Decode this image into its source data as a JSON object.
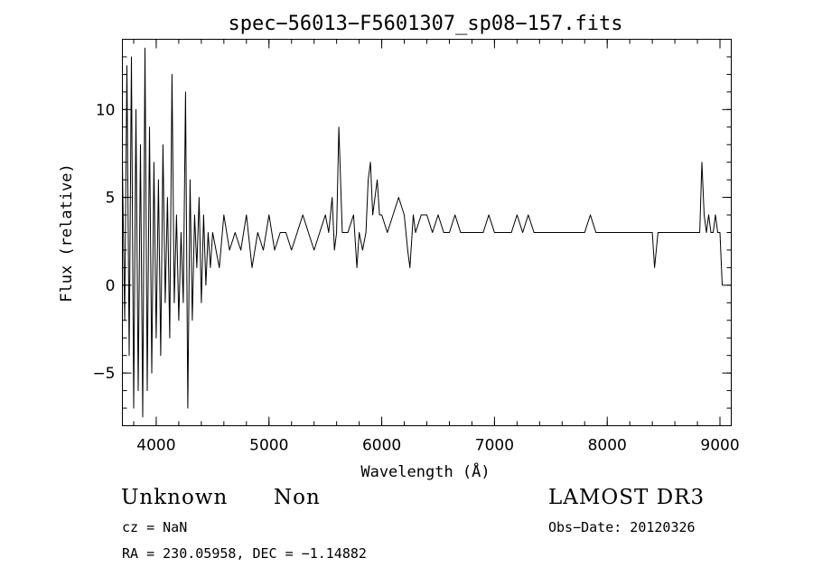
{
  "chart_data": {
    "type": "line",
    "title": "spec−56013−F5601307_sp08−157.fits",
    "xlabel": "Wavelength (Å)",
    "ylabel": "Flux (relative)",
    "xlim": [
      3700,
      9100
    ],
    "ylim": [
      -8,
      14
    ],
    "x_ticks": [
      4000,
      5000,
      6000,
      7000,
      8000,
      9000
    ],
    "y_ticks": [
      -5,
      0,
      5,
      10
    ],
    "y_tick_labels": [
      "−5",
      "0",
      "5",
      "10"
    ],
    "x_minor_step": 200,
    "y_minor_step": 1,
    "grid": false,
    "series": [
      {
        "color": "#000000",
        "x": [
          3700,
          3720,
          3740,
          3760,
          3780,
          3800,
          3820,
          3840,
          3860,
          3880,
          3900,
          3920,
          3940,
          3960,
          3980,
          4000,
          4020,
          4040,
          4060,
          4080,
          4100,
          4120,
          4140,
          4160,
          4180,
          4200,
          4220,
          4240,
          4260,
          4280,
          4300,
          4320,
          4340,
          4360,
          4380,
          4400,
          4420,
          4440,
          4460,
          4480,
          4500,
          4530,
          4560,
          4600,
          4650,
          4700,
          4750,
          4800,
          4850,
          4900,
          4950,
          5000,
          5050,
          5100,
          5150,
          5200,
          5250,
          5300,
          5350,
          5400,
          5450,
          5500,
          5530,
          5560,
          5580,
          5600,
          5620,
          5650,
          5700,
          5750,
          5780,
          5800,
          5830,
          5860,
          5880,
          5900,
          5920,
          5940,
          5960,
          5980,
          6000,
          6050,
          6100,
          6150,
          6200,
          6230,
          6250,
          6280,
          6300,
          6350,
          6400,
          6450,
          6500,
          6550,
          6600,
          6650,
          6700,
          6750,
          6800,
          6850,
          6900,
          6950,
          7000,
          7050,
          7100,
          7150,
          7200,
          7250,
          7300,
          7350,
          7400,
          7450,
          7500,
          7550,
          7600,
          7650,
          7700,
          7750,
          7800,
          7850,
          7900,
          7950,
          8000,
          8050,
          8100,
          8150,
          8200,
          8250,
          8300,
          8350,
          8400,
          8420,
          8450,
          8500,
          8550,
          8600,
          8650,
          8700,
          8750,
          8800,
          8820,
          8840,
          8860,
          8880,
          8900,
          8920,
          8940,
          8960,
          8980,
          9000,
          9020
        ],
        "y": [
          7,
          -2,
          12.5,
          -4,
          13,
          -7,
          10,
          -6,
          8,
          -7.5,
          13.5,
          -6,
          9,
          -5,
          7,
          -3,
          6,
          -4,
          8,
          -1,
          5,
          -3,
          12,
          -1,
          4,
          -2,
          3,
          -1,
          11,
          -7,
          6,
          -2,
          4,
          1,
          5,
          -1,
          4,
          0,
          3,
          1,
          3,
          2,
          1,
          4,
          2,
          3,
          2,
          4,
          1,
          3,
          2,
          4,
          2,
          3,
          3,
          2,
          3,
          4,
          3,
          2,
          3,
          4,
          3,
          5,
          2,
          3,
          9,
          3,
          3,
          4,
          1,
          3,
          2,
          3,
          6,
          7,
          4,
          5,
          6,
          4,
          4,
          3,
          4,
          5,
          4,
          2,
          1,
          4,
          3,
          4,
          4,
          3,
          4,
          3,
          3,
          4,
          3,
          3,
          3,
          3,
          3,
          4,
          3,
          3,
          3,
          3,
          4,
          3,
          4,
          3,
          3,
          3,
          3,
          3,
          3,
          3,
          3,
          3,
          3,
          4,
          3,
          3,
          3,
          3,
          3,
          3,
          3,
          3,
          3,
          3,
          3,
          1,
          3,
          3,
          3,
          3,
          3,
          3,
          3,
          3,
          3,
          7,
          4,
          3,
          4,
          3,
          3,
          4,
          3,
          3,
          0
        ]
      }
    ]
  },
  "info": {
    "object_class": "Unknown",
    "object_subclass": "Non",
    "survey": "LAMOST DR3",
    "cz": "cz = NaN",
    "obs_date": "Obs−Date: 20120326",
    "coords": "RA = 230.05958, DEC =  −1.14882"
  }
}
